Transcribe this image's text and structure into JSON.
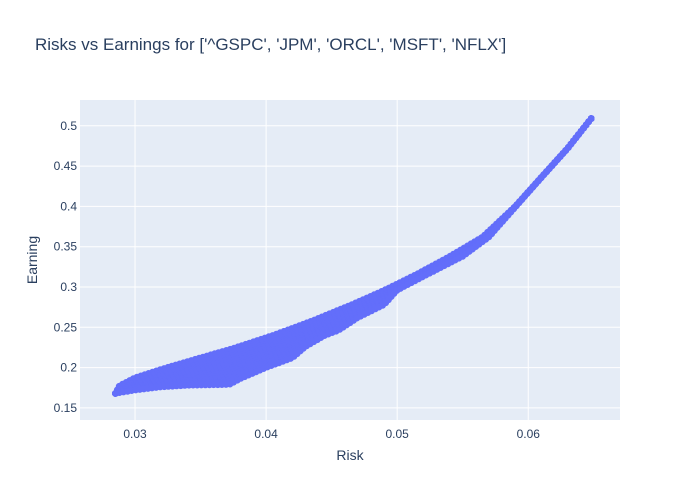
{
  "chart_data": {
    "type": "scatter",
    "title": "Risks vs Earnings for ['^GSPC', 'JPM', 'ORCL', 'MSFT', 'NFLX']",
    "xlabel": "Risk",
    "ylabel": "Earning",
    "xlim": [
      0.0258,
      0.067
    ],
    "ylim": [
      0.135,
      0.532
    ],
    "xticks": [
      0.03,
      0.04,
      0.05,
      0.06
    ],
    "yticks": [
      0.15,
      0.2,
      0.25,
      0.3,
      0.35,
      0.4,
      0.45,
      0.5
    ],
    "grid": true,
    "legend": "none",
    "colors": {
      "marker": "#636efa",
      "plot_bg": "#e5ecf6",
      "grid": "#ffffff",
      "text": "#2a3f5f"
    },
    "series": [
      {
        "frontier": [
          [
            0.0285,
            0.168
          ],
          [
            0.0288,
            0.1775
          ],
          [
            0.03,
            0.1875
          ],
          [
            0.032,
            0.198
          ],
          [
            0.0345,
            0.21
          ],
          [
            0.0375,
            0.224
          ],
          [
            0.0405,
            0.24
          ],
          [
            0.0435,
            0.258
          ],
          [
            0.0465,
            0.278
          ],
          [
            0.049,
            0.296
          ],
          [
            0.0515,
            0.316
          ],
          [
            0.054,
            0.338
          ],
          [
            0.0565,
            0.362
          ],
          [
            0.059,
            0.4
          ],
          [
            0.061,
            0.436
          ],
          [
            0.063,
            0.472
          ],
          [
            0.0648,
            0.509
          ]
        ],
        "lower_edge": [
          [
            0.0285,
            0.168
          ],
          [
            0.03,
            0.172
          ],
          [
            0.032,
            0.176
          ],
          [
            0.034,
            0.178
          ],
          [
            0.0372,
            0.179
          ],
          [
            0.038,
            0.186
          ],
          [
            0.04,
            0.2
          ],
          [
            0.042,
            0.212
          ],
          [
            0.043,
            0.226
          ],
          [
            0.0445,
            0.24
          ],
          [
            0.0455,
            0.246
          ],
          [
            0.047,
            0.262
          ],
          [
            0.049,
            0.278
          ],
          [
            0.05,
            0.296
          ],
          [
            0.052,
            0.313
          ],
          [
            0.055,
            0.338
          ],
          [
            0.057,
            0.362
          ],
          [
            0.059,
            0.399
          ],
          [
            0.061,
            0.436
          ],
          [
            0.063,
            0.472
          ],
          [
            0.0648,
            0.509
          ]
        ]
      }
    ]
  }
}
